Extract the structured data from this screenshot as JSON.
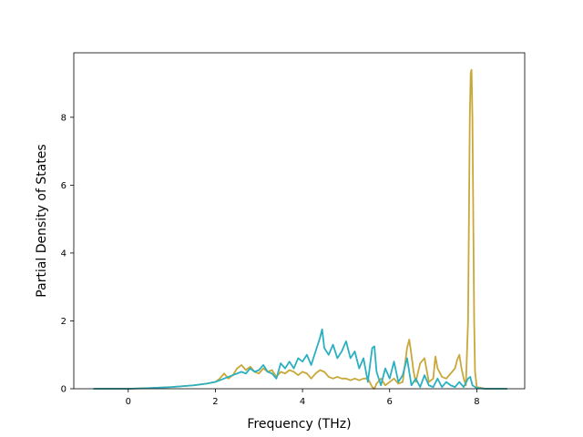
{
  "chart_data": {
    "type": "line",
    "xlabel": "Frequency (THz)",
    "ylabel": "Partial Density of States",
    "xlim": [
      -1.25,
      9.1
    ],
    "ylim": [
      0,
      9.9
    ],
    "x_ticks": [
      0,
      2,
      4,
      6,
      8
    ],
    "x_tick_labels": [
      "0",
      "2",
      "4",
      "6",
      "8"
    ],
    "y_ticks": [
      0,
      2,
      4,
      6,
      8
    ],
    "y_tick_labels": [
      "0",
      "2",
      "4",
      "6",
      "8"
    ],
    "grid": false,
    "legend": "none",
    "series": [
      {
        "color": "#c9a83a",
        "x": [
          -0.8,
          0.0,
          0.5,
          1.0,
          1.5,
          1.8,
          2.0,
          2.1,
          2.2,
          2.3,
          2.4,
          2.5,
          2.6,
          2.7,
          2.8,
          2.9,
          3.0,
          3.1,
          3.2,
          3.3,
          3.4,
          3.5,
          3.6,
          3.7,
          3.8,
          3.9,
          4.0,
          4.1,
          4.2,
          4.3,
          4.4,
          4.5,
          4.6,
          4.7,
          4.8,
          4.9,
          5.0,
          5.1,
          5.2,
          5.3,
          5.4,
          5.5,
          5.6,
          5.65,
          5.7,
          5.8,
          5.9,
          6.0,
          6.1,
          6.2,
          6.3,
          6.4,
          6.45,
          6.5,
          6.55,
          6.6,
          6.7,
          6.8,
          6.9,
          7.0,
          7.05,
          7.1,
          7.2,
          7.3,
          7.4,
          7.5,
          7.55,
          7.6,
          7.65,
          7.7,
          7.75,
          7.8,
          7.82,
          7.84,
          7.86,
          7.88,
          7.9,
          7.92,
          7.94,
          7.96,
          8.0,
          8.2,
          8.7
        ],
        "y": [
          0,
          0,
          0.02,
          0.05,
          0.1,
          0.15,
          0.2,
          0.3,
          0.45,
          0.3,
          0.4,
          0.6,
          0.7,
          0.55,
          0.65,
          0.5,
          0.45,
          0.6,
          0.5,
          0.55,
          0.35,
          0.5,
          0.45,
          0.55,
          0.5,
          0.4,
          0.5,
          0.45,
          0.3,
          0.45,
          0.55,
          0.5,
          0.35,
          0.3,
          0.35,
          0.3,
          0.3,
          0.25,
          0.3,
          0.25,
          0.3,
          0.3,
          0.05,
          0.0,
          0.15,
          0.3,
          0.1,
          0.2,
          0.3,
          0.15,
          0.2,
          1.2,
          1.45,
          1.0,
          0.5,
          0.2,
          0.75,
          0.9,
          0.2,
          0.3,
          0.95,
          0.6,
          0.35,
          0.3,
          0.45,
          0.6,
          0.85,
          1.0,
          0.6,
          0.3,
          0.1,
          2.0,
          5.0,
          8.0,
          9.3,
          9.4,
          8.0,
          5.0,
          2.0,
          0.5,
          0.05,
          0,
          0
        ]
      },
      {
        "color": "#2ab0c0",
        "x": [
          -0.8,
          0.0,
          0.5,
          1.0,
          1.5,
          1.8,
          2.0,
          2.1,
          2.2,
          2.3,
          2.4,
          2.5,
          2.6,
          2.7,
          2.8,
          2.9,
          3.0,
          3.1,
          3.2,
          3.3,
          3.4,
          3.5,
          3.6,
          3.7,
          3.8,
          3.9,
          4.0,
          4.1,
          4.2,
          4.3,
          4.4,
          4.45,
          4.5,
          4.6,
          4.7,
          4.8,
          4.9,
          5.0,
          5.1,
          5.2,
          5.3,
          5.4,
          5.5,
          5.6,
          5.65,
          5.7,
          5.8,
          5.9,
          6.0,
          6.1,
          6.2,
          6.3,
          6.4,
          6.5,
          6.6,
          6.7,
          6.8,
          6.9,
          7.0,
          7.1,
          7.2,
          7.3,
          7.4,
          7.5,
          7.6,
          7.7,
          7.8,
          7.85,
          7.9,
          8.0,
          8.2,
          8.7
        ],
        "y": [
          0,
          0,
          0.02,
          0.05,
          0.1,
          0.15,
          0.2,
          0.25,
          0.3,
          0.35,
          0.4,
          0.45,
          0.5,
          0.45,
          0.6,
          0.5,
          0.55,
          0.7,
          0.5,
          0.45,
          0.3,
          0.75,
          0.6,
          0.8,
          0.6,
          0.9,
          0.8,
          1.0,
          0.7,
          1.1,
          1.5,
          1.75,
          1.2,
          1.0,
          1.3,
          0.9,
          1.1,
          1.4,
          0.9,
          1.1,
          0.6,
          0.9,
          0.2,
          1.2,
          1.25,
          0.5,
          0.1,
          0.6,
          0.3,
          0.8,
          0.2,
          0.4,
          0.9,
          0.1,
          0.3,
          0.05,
          0.4,
          0.1,
          0.05,
          0.3,
          0.05,
          0.2,
          0.1,
          0.05,
          0.2,
          0.05,
          0.3,
          0.35,
          0.1,
          0.02,
          0,
          0
        ]
      }
    ]
  }
}
